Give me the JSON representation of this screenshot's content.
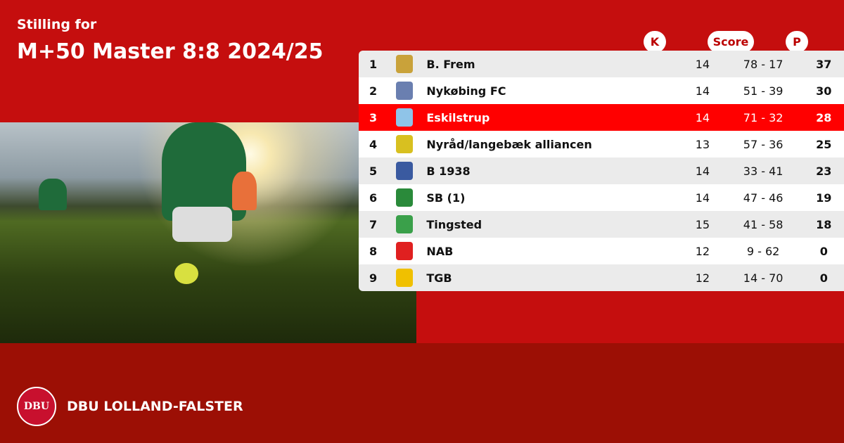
{
  "header": {
    "subtitle": "Stilling for",
    "title": "M+50 Master 8:8 2024/25"
  },
  "columns": {
    "k": "K",
    "score": "Score",
    "p": "P"
  },
  "rows": [
    {
      "pos": "1",
      "team": "B. Frem",
      "k": "14",
      "score": "78 - 17",
      "p": "37",
      "logo_color": "#c9a23a"
    },
    {
      "pos": "2",
      "team": "Nykøbing FC",
      "k": "14",
      "score": "51 - 39",
      "p": "30",
      "logo_color": "#6a7fb0"
    },
    {
      "pos": "3",
      "team": "Eskilstrup",
      "k": "14",
      "score": "71 - 32",
      "p": "28",
      "logo_color": "#8fc4e8",
      "highlighted": true
    },
    {
      "pos": "4",
      "team": "Nyråd/langebæk alliancen",
      "k": "13",
      "score": "57 - 36",
      "p": "25",
      "logo_color": "#d8c020"
    },
    {
      "pos": "5",
      "team": "B 1938",
      "k": "14",
      "score": "33 - 41",
      "p": "23",
      "logo_color": "#3a5aa0"
    },
    {
      "pos": "6",
      "team": "SB (1)",
      "k": "14",
      "score": "47 - 46",
      "p": "19",
      "logo_color": "#2a8a3a"
    },
    {
      "pos": "7",
      "team": "Tingsted",
      "k": "15",
      "score": "41 - 58",
      "p": "18",
      "logo_color": "#3aa04a"
    },
    {
      "pos": "8",
      "team": "NAB",
      "k": "12",
      "score": "9 - 62",
      "p": "0",
      "logo_color": "#e02020"
    },
    {
      "pos": "9",
      "team": "TGB",
      "k": "12",
      "score": "14 - 70",
      "p": "0",
      "logo_color": "#f0c000"
    }
  ],
  "footer": {
    "brand": "DBU LOLLAND-FALSTER",
    "seal_text": "DBU"
  },
  "colors": {
    "top_bg": "#c50e0e",
    "bottom_bg": "#9c0f05",
    "highlight": "#ff0000"
  }
}
